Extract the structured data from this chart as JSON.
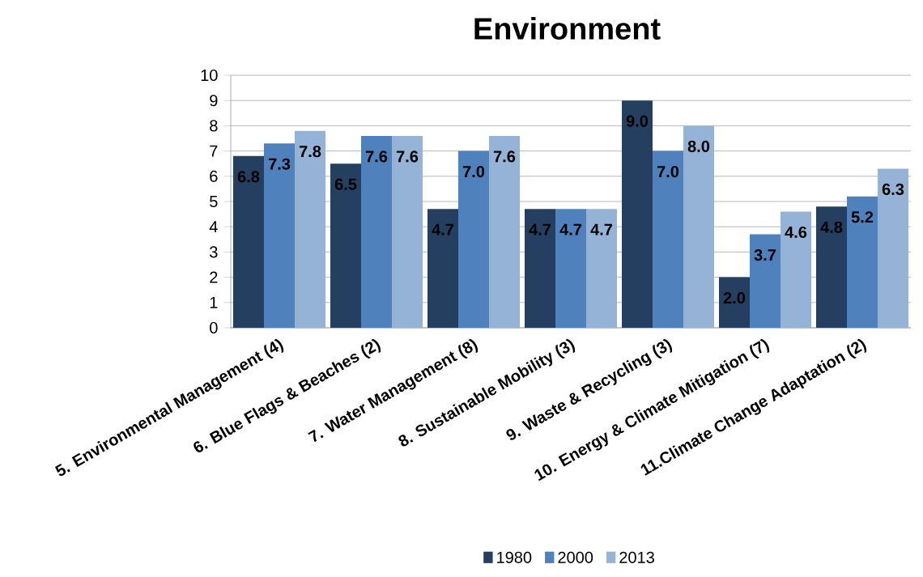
{
  "chart_data": {
    "type": "bar",
    "title": "Environment",
    "categories": [
      "5. Environmental Management (4)",
      "6. Blue Flags & Beaches (2)",
      "7. Water Management (8)",
      "8. Sustainable Mobility (3)",
      "9. Waste & Recycling (3)",
      "10. Energy & Climate Mitigation (7)",
      "11.Climate Change Adaptation (2)"
    ],
    "series": [
      {
        "name": "1980",
        "color": "#243f60",
        "values": [
          6.8,
          6.5,
          4.7,
          4.7,
          9.0,
          2.0,
          4.8
        ],
        "value_labels": [
          "6.8",
          "6.5",
          "4.7",
          "4.7",
          "9.0",
          "2.0",
          "4.8"
        ]
      },
      {
        "name": "2000",
        "color": "#4f81bd",
        "values": [
          7.3,
          7.6,
          7.0,
          4.7,
          7.0,
          3.7,
          5.2
        ],
        "value_labels": [
          "7.3",
          "7.6",
          "7.0",
          "4.7",
          "7.0",
          "3.7",
          "5.2"
        ]
      },
      {
        "name": "2013",
        "color": "#95b3d7",
        "values": [
          7.8,
          7.6,
          7.6,
          4.7,
          8.0,
          4.6,
          6.3
        ],
        "value_labels": [
          "7.8",
          "7.6",
          "7.6",
          "4.7",
          "8.0",
          "4.6",
          "6.3"
        ]
      }
    ],
    "ylim": [
      0,
      10
    ],
    "yticks": [
      0,
      1,
      2,
      3,
      4,
      5,
      6,
      7,
      8,
      9,
      10
    ],
    "grid": "y",
    "legend": "bottom"
  }
}
